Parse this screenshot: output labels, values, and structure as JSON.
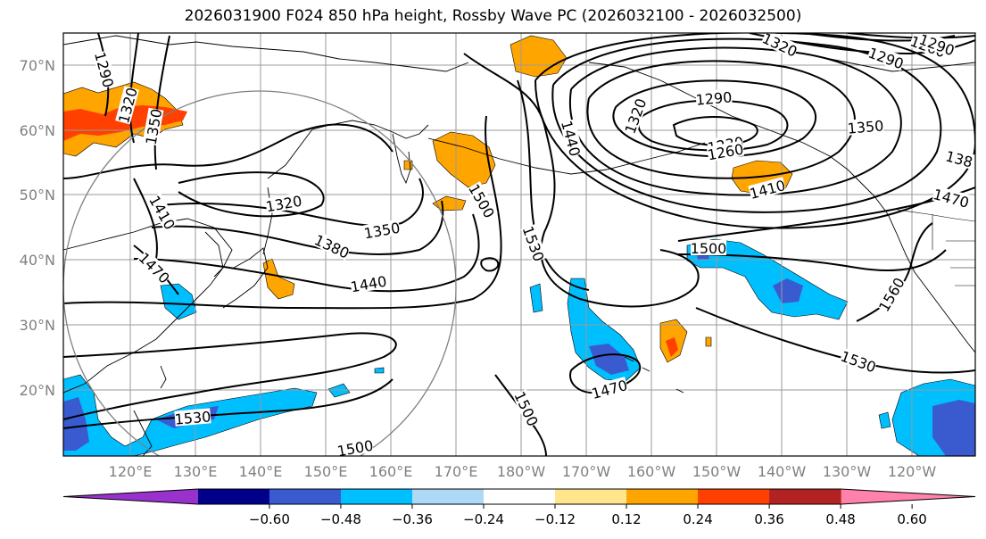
{
  "title": "2026031900 F024 850 hPa height, Rossby Wave PC (2026032100 - 2026032500)",
  "lat_labels": [
    "70°N",
    "60°N",
    "50°N",
    "40°N",
    "30°N",
    "20°N"
  ],
  "lon_labels": [
    "120°E",
    "130°E",
    "140°E",
    "150°E",
    "160°E",
    "170°E",
    "180°W",
    "170°W",
    "160°W",
    "150°W",
    "140°W",
    "130°W",
    "120°W"
  ],
  "contour_labels": [
    {
      "text": "1290",
      "rot": 75
    },
    {
      "text": "1320",
      "rot": -75
    },
    {
      "text": "1350",
      "rot": -80
    },
    {
      "text": "1410",
      "rot": 60
    },
    {
      "text": "1470",
      "rot": 45
    },
    {
      "text": "1320",
      "rot": -10
    },
    {
      "text": "1350",
      "rot": -10
    },
    {
      "text": "1380",
      "rot": 25
    },
    {
      "text": "1440",
      "rot": -10
    },
    {
      "text": "1500",
      "rot": 60
    },
    {
      "text": "1530",
      "rot": 70
    },
    {
      "text": "1440",
      "rot": 75
    },
    {
      "text": "1290",
      "rot": -5
    },
    {
      "text": "1320",
      "rot": -70
    },
    {
      "text": "1230",
      "rot": -10
    },
    {
      "text": "1260",
      "rot": -10
    },
    {
      "text": "1320",
      "rot": 25
    },
    {
      "text": "1290",
      "rot": 20
    },
    {
      "text": "1260",
      "rot": 20
    },
    {
      "text": "1290",
      "rot": 20
    },
    {
      "text": "1350",
      "rot": -5
    },
    {
      "text": "138",
      "rot": 15
    },
    {
      "text": "1410",
      "rot": -15
    },
    {
      "text": "1470",
      "rot": 15
    },
    {
      "text": "1500",
      "rot": 0
    },
    {
      "text": "1560",
      "rot": -60
    },
    {
      "text": "1530",
      "rot": 20
    },
    {
      "text": "1470",
      "rot": -15
    },
    {
      "text": "1500",
      "rot": 65
    },
    {
      "text": "1530",
      "rot": -5
    },
    {
      "text": "1500",
      "rot": -10
    }
  ],
  "colorbar": {
    "colors": [
      "#9932cc",
      "#00008b",
      "#3a5bd0",
      "#00bfff",
      "#add8f6",
      "#ffffff",
      "#ffe68c",
      "#ffa500",
      "#ff4000",
      "#b22222",
      "#ff82ab"
    ],
    "ticks": [
      "−0.60",
      "−0.48",
      "−0.36",
      "−0.24",
      "−0.12",
      "0.12",
      "0.24",
      "0.36",
      "0.48",
      "0.60"
    ]
  }
}
